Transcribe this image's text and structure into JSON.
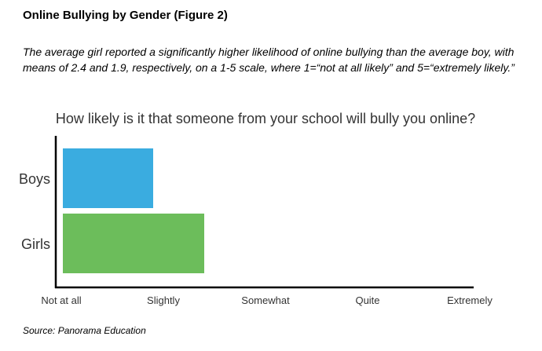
{
  "figure": {
    "title": "Online Bullying by Gender (Figure 2)",
    "caption": "The average girl reported a significantly higher likelihood of online bullying than the average boy, with means of 2.4 and 1.9, respectively, on a 1-5 scale, where 1=“not at all likely” and 5=“extremely likely.”",
    "source": "Source: Panorama Education"
  },
  "chart_data": {
    "type": "bar",
    "orientation": "horizontal",
    "title": "How likely is it that someone from your school will bully you online?",
    "categories": [
      "Boys",
      "Girls"
    ],
    "values": [
      1.9,
      2.4
    ],
    "colors": [
      "#3aace0",
      "#6cbd5b"
    ],
    "xlim": [
      1,
      5
    ],
    "xticks": [
      {
        "value": 1,
        "label": "Not at all"
      },
      {
        "value": 2,
        "label": "Slightly"
      },
      {
        "value": 3,
        "label": "Somewhat"
      },
      {
        "value": 4,
        "label": "Quite"
      },
      {
        "value": 5,
        "label": "Extremely"
      }
    ],
    "grid": false,
    "legend": "none"
  }
}
